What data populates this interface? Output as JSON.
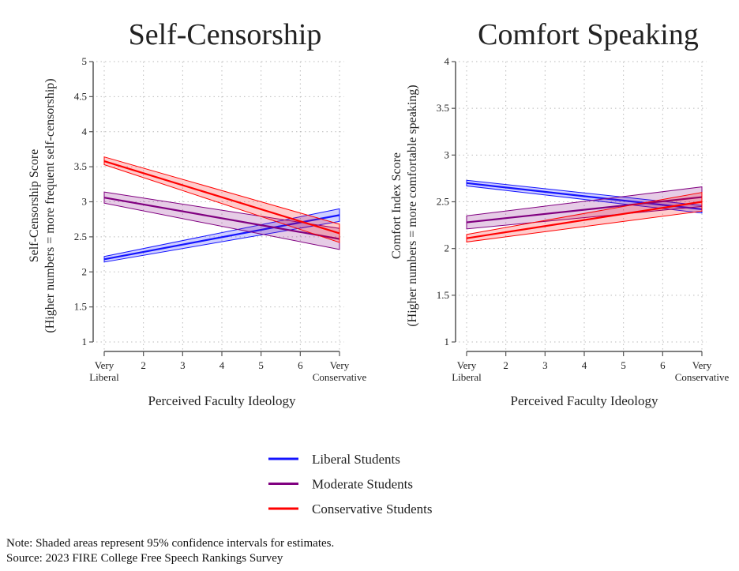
{
  "colors": {
    "liberal": "#1414ff",
    "moderate": "#800080",
    "conservative": "#ff0000",
    "axis": "#555555",
    "grid": "#bbbbbb"
  },
  "legend": [
    {
      "key": "liberal",
      "label": "Liberal Students"
    },
    {
      "key": "moderate",
      "label": "Moderate Students"
    },
    {
      "key": "conservative",
      "label": "Conservative Students"
    }
  ],
  "notes": {
    "line1": "Note: Shaded areas represent 95% confidence intervals for estimates.",
    "line2": "Source: 2023 FIRE College Free Speech Rankings Survey"
  },
  "chart_data": [
    {
      "type": "line",
      "title": "Self-Censorship",
      "xlabel": "Perceived Faculty Ideology",
      "ylabel": [
        "Self-Censorship Score",
        "(Higher numbers = more frequent self-censorship)"
      ],
      "xlim": [
        1,
        7
      ],
      "ylim": [
        1,
        5
      ],
      "yticks": [
        1,
        1.5,
        2,
        2.5,
        3,
        3.5,
        4,
        4.5,
        5
      ],
      "ytick_labels": [
        "1",
        "1.5",
        "2",
        "2.5",
        "3",
        "3.5",
        "4",
        "4.5",
        "5"
      ],
      "xticks": [
        1,
        2,
        3,
        4,
        5,
        6,
        7
      ],
      "xtick_labels": [
        [
          "Very",
          "Liberal"
        ],
        [
          "2"
        ],
        [
          "3"
        ],
        [
          "4"
        ],
        [
          "5"
        ],
        [
          "6"
        ],
        [
          "Very",
          "Conservative"
        ]
      ],
      "grid": true,
      "series": [
        {
          "key": "liberal",
          "name": "Liberal Students",
          "x": [
            1,
            7
          ],
          "y": [
            2.18,
            2.81
          ],
          "lower": [
            2.14,
            2.72
          ],
          "upper": [
            2.22,
            2.9
          ]
        },
        {
          "key": "moderate",
          "name": "Moderate Students",
          "x": [
            1,
            7
          ],
          "y": [
            3.06,
            2.47
          ],
          "lower": [
            2.98,
            2.32
          ],
          "upper": [
            3.14,
            2.62
          ]
        },
        {
          "key": "conservative",
          "name": "Conservative Students",
          "x": [
            1,
            7
          ],
          "y": [
            3.58,
            2.55
          ],
          "lower": [
            3.53,
            2.42
          ],
          "upper": [
            3.64,
            2.68
          ]
        }
      ]
    },
    {
      "type": "line",
      "title": "Comfort Speaking",
      "xlabel": "Perceived Faculty Ideology",
      "ylabel": [
        "Comfort Index Score",
        "(Higher numbers = more comfortable speaking)"
      ],
      "xlim": [
        1,
        7
      ],
      "ylim": [
        1,
        4
      ],
      "yticks": [
        1,
        1.5,
        2,
        2.5,
        3,
        3.5,
        4
      ],
      "ytick_labels": [
        "1",
        "1.5",
        "2",
        "2.5",
        "3",
        "3.5",
        "4"
      ],
      "xticks": [
        1,
        2,
        3,
        4,
        5,
        6,
        7
      ],
      "xtick_labels": [
        [
          "Very",
          "Liberal"
        ],
        [
          "2"
        ],
        [
          "3"
        ],
        [
          "4"
        ],
        [
          "5"
        ],
        [
          "6"
        ],
        [
          "Very",
          "Conservative"
        ]
      ],
      "grid": true,
      "series": [
        {
          "key": "liberal",
          "name": "Liberal Students",
          "x": [
            1,
            7
          ],
          "y": [
            2.7,
            2.42
          ],
          "lower": [
            2.67,
            2.38
          ],
          "upper": [
            2.73,
            2.46
          ]
        },
        {
          "key": "moderate",
          "name": "Moderate Students",
          "x": [
            1,
            7
          ],
          "y": [
            2.28,
            2.55
          ],
          "lower": [
            2.21,
            2.45
          ],
          "upper": [
            2.35,
            2.66
          ]
        },
        {
          "key": "conservative",
          "name": "Conservative Students",
          "x": [
            1,
            7
          ],
          "y": [
            2.11,
            2.5
          ],
          "lower": [
            2.07,
            2.4
          ],
          "upper": [
            2.15,
            2.6
          ]
        }
      ]
    }
  ]
}
